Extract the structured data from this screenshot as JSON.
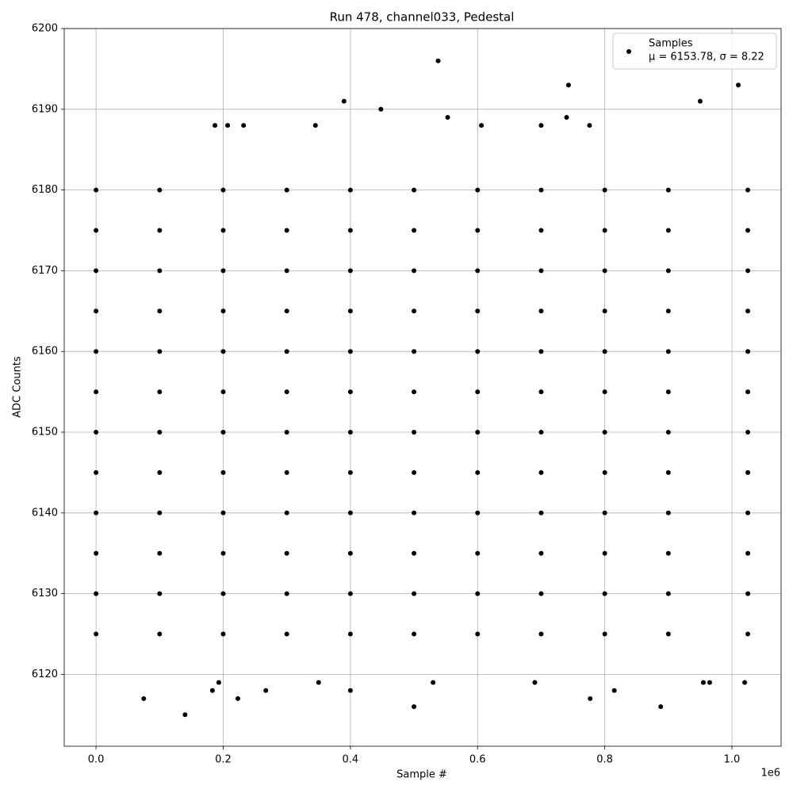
{
  "chart_data": {
    "type": "scatter",
    "title": "Run 478, channel033, Pedestal",
    "x_label": "Sample #",
    "y_label": "ADC Counts",
    "x_offset_label": "1e6",
    "legend_note": "μ = 6153.78, σ = 8.22",
    "legend": "upper right",
    "grid": true,
    "xlim": [
      -50000,
      1077300
    ],
    "ylim": [
      6111.1,
      6200
    ],
    "xticks": [
      {
        "value": 0,
        "label": "0.0"
      },
      {
        "value": 200000,
        "label": "0.2"
      },
      {
        "value": 400000,
        "label": "0.4"
      },
      {
        "value": 600000,
        "label": "0.6"
      },
      {
        "value": 800000,
        "label": "0.8"
      },
      {
        "value": 1000000,
        "label": "1.0"
      }
    ],
    "yticks": [
      6120,
      6130,
      6140,
      6150,
      6160,
      6170,
      6180,
      6190,
      6200
    ],
    "series": [
      {
        "name": "Samples",
        "color": "#000000",
        "x": [
          75000,
          140000,
          183000,
          193000,
          223000,
          267000,
          350000,
          400000,
          500000,
          530000,
          690000,
          777000,
          815000,
          888000,
          955000,
          965000,
          1020000,
          538000,
          743000,
          1010000,
          390000,
          448000,
          950000,
          553000,
          740000,
          187000,
          207000,
          232000,
          345000,
          606000,
          700000,
          776000,
          0,
          0,
          0,
          0,
          0,
          0,
          0,
          0,
          0,
          0,
          0,
          0,
          100000,
          100000,
          100000,
          100000,
          100000,
          100000,
          100000,
          100000,
          100000,
          100000,
          100000,
          100000,
          200000,
          200000,
          200000,
          200000,
          200000,
          200000,
          200000,
          200000,
          200000,
          200000,
          200000,
          200000,
          300000,
          300000,
          300000,
          300000,
          300000,
          300000,
          300000,
          300000,
          300000,
          300000,
          300000,
          300000,
          400000,
          400000,
          400000,
          400000,
          400000,
          400000,
          400000,
          400000,
          400000,
          400000,
          400000,
          400000,
          500000,
          500000,
          500000,
          500000,
          500000,
          500000,
          500000,
          500000,
          500000,
          500000,
          500000,
          500000,
          600000,
          600000,
          600000,
          600000,
          600000,
          600000,
          600000,
          600000,
          600000,
          600000,
          600000,
          600000,
          700000,
          700000,
          700000,
          700000,
          700000,
          700000,
          700000,
          700000,
          700000,
          700000,
          700000,
          700000,
          800000,
          800000,
          800000,
          800000,
          800000,
          800000,
          800000,
          800000,
          800000,
          800000,
          800000,
          800000,
          900000,
          900000,
          900000,
          900000,
          900000,
          900000,
          900000,
          900000,
          900000,
          900000,
          900000,
          900000,
          1025000,
          1025000,
          1025000,
          1025000,
          1025000,
          1025000,
          1025000,
          1025000,
          1025000,
          1025000,
          1025000,
          1025000
        ],
        "values": [
          6117,
          6115,
          6118,
          6119,
          6117,
          6118,
          6119,
          6118,
          6116,
          6119,
          6119,
          6117,
          6118,
          6116,
          6119,
          6119,
          6119,
          6196,
          6193,
          6193,
          6191,
          6190,
          6191,
          6189,
          6189,
          6188,
          6188,
          6188,
          6188,
          6188,
          6188,
          6188,
          6125,
          6130,
          6135,
          6140,
          6145,
          6150,
          6155,
          6160,
          6165,
          6170,
          6175,
          6180,
          6125,
          6130,
          6135,
          6140,
          6145,
          6150,
          6155,
          6160,
          6165,
          6170,
          6175,
          6180,
          6125,
          6130,
          6135,
          6140,
          6145,
          6150,
          6155,
          6160,
          6165,
          6170,
          6175,
          6180,
          6125,
          6130,
          6135,
          6140,
          6145,
          6150,
          6155,
          6160,
          6165,
          6170,
          6175,
          6180,
          6125,
          6130,
          6135,
          6140,
          6145,
          6150,
          6155,
          6160,
          6165,
          6170,
          6175,
          6180,
          6125,
          6130,
          6135,
          6140,
          6145,
          6150,
          6155,
          6160,
          6165,
          6170,
          6175,
          6180,
          6125,
          6130,
          6135,
          6140,
          6145,
          6150,
          6155,
          6160,
          6165,
          6170,
          6175,
          6180,
          6125,
          6130,
          6135,
          6140,
          6145,
          6150,
          6155,
          6160,
          6165,
          6170,
          6175,
          6180,
          6125,
          6130,
          6135,
          6140,
          6145,
          6150,
          6155,
          6160,
          6165,
          6170,
          6175,
          6180,
          6125,
          6130,
          6135,
          6140,
          6145,
          6150,
          6155,
          6160,
          6165,
          6170,
          6175,
          6180,
          6125,
          6130,
          6135,
          6140,
          6145,
          6150,
          6155,
          6160,
          6165,
          6170,
          6175,
          6180
        ]
      }
    ]
  }
}
